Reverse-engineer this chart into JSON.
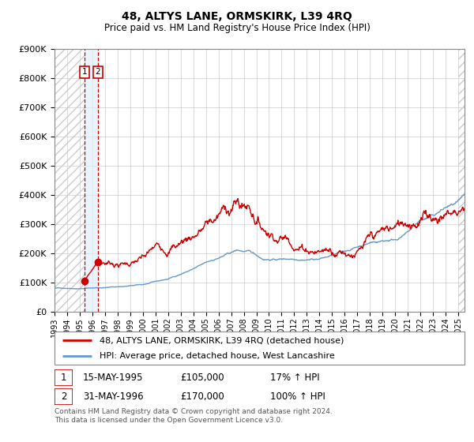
{
  "title": "48, ALTYS LANE, ORMSKIRK, L39 4RQ",
  "subtitle": "Price paid vs. HM Land Registry's House Price Index (HPI)",
  "legend_line1": "48, ALTYS LANE, ORMSKIRK, L39 4RQ (detached house)",
  "legend_line2": "HPI: Average price, detached house, West Lancashire",
  "transaction1_date": "15-MAY-1995",
  "transaction1_price": 105000,
  "transaction1_label": "17% ↑ HPI",
  "transaction2_date": "31-MAY-1996",
  "transaction2_price": 170000,
  "transaction2_label": "100% ↑ HPI",
  "footer": "Contains HM Land Registry data © Crown copyright and database right 2024.\nThis data is licensed under the Open Government Licence v3.0.",
  "hpi_color": "#6699cc",
  "price_color": "#cc0000",
  "ylim": [
    0,
    900000
  ],
  "yticks": [
    0,
    100000,
    200000,
    300000,
    400000,
    500000,
    600000,
    700000,
    800000,
    900000
  ],
  "xlabel_years": [
    "1993",
    "1994",
    "1995",
    "1996",
    "1997",
    "1998",
    "1999",
    "2000",
    "2001",
    "2002",
    "2003",
    "2004",
    "2005",
    "2006",
    "2007",
    "2008",
    "2009",
    "2010",
    "2011",
    "2012",
    "2013",
    "2014",
    "2015",
    "2016",
    "2017",
    "2018",
    "2019",
    "2020",
    "2021",
    "2022",
    "2023",
    "2024",
    "2025"
  ],
  "hatch_color": "#bbbbbb",
  "shade_color": "#ddeeff",
  "t1_year": 1995.37,
  "t2_year": 1996.42,
  "xmin": 1993.0,
  "xmax": 2025.5
}
